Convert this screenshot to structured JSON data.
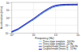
{
  "chart_data": {
    "type": "line",
    "title": "",
    "xlabel": "Frequency (Hz)",
    "ylabel": "Acceleration (m/s²)",
    "log": true,
    "grid": true,
    "legend": "lower right",
    "x": [
      1,
      2,
      3,
      5,
      8,
      10,
      15,
      20,
      30,
      50,
      70,
      100,
      150,
      200,
      300,
      500,
      700,
      1000
    ],
    "xlim": [
      1,
      1000
    ],
    "xticks": [
      {
        "value": 1,
        "label": "10⁰"
      },
      {
        "value": 10,
        "label": "10¹"
      },
      {
        "value": 100,
        "label": "10²"
      },
      {
        "value": 1000,
        "label": "10³"
      }
    ],
    "ylim": [
      0.01,
      100
    ],
    "yticks": [
      {
        "value": 0.01,
        "label": "10⁻²"
      },
      {
        "value": 0.1,
        "label": "10⁻¹"
      },
      {
        "value": 1,
        "label": "10⁰"
      },
      {
        "value": 10,
        "label": "10¹"
      },
      {
        "value": 100,
        "label": "10²"
      }
    ],
    "series": [
      {
        "name": "Three-slope template - 100 Hz",
        "color": "#99ddff",
        "values": [
          0.01,
          0.022,
          0.048,
          0.13,
          0.3,
          0.44,
          1.0,
          1.9,
          4.3,
          10,
          17,
          25,
          32,
          35,
          38,
          40,
          40.5,
          41
        ]
      },
      {
        "name": "Three-slope template - 10 Hz",
        "color": "#6699cc",
        "values": [
          0.011,
          0.026,
          0.058,
          0.16,
          0.38,
          0.58,
          1.4,
          2.5,
          5.8,
          14,
          24,
          34,
          43,
          47,
          51,
          53,
          53.5,
          54
        ]
      },
      {
        "name": "Coupled model (mass 1) - 100 Hz",
        "color": "#3333bb",
        "values": [
          0.012,
          0.028,
          0.06,
          0.16,
          0.38,
          0.55,
          1.3,
          2.4,
          5.5,
          13,
          22,
          31,
          38,
          41,
          43,
          44,
          44.5,
          45
        ]
      },
      {
        "name": "Coupled model (mass 2) - 10 Hz",
        "color": "#000088",
        "values": [
          0.014,
          0.034,
          0.075,
          0.2,
          0.5,
          0.75,
          1.8,
          3.3,
          7.5,
          18,
          30,
          42,
          50,
          54,
          56,
          57,
          57.5,
          58
        ]
      }
    ]
  }
}
